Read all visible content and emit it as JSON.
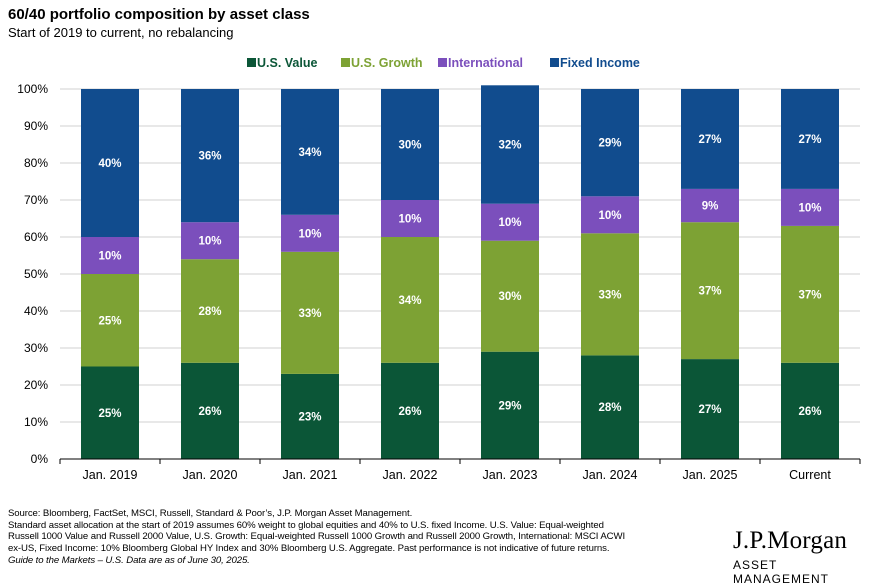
{
  "title": "60/40 portfolio composition by asset class",
  "subtitle": "Start of 2019 to current, no rebalancing",
  "footer": {
    "lines": [
      "Source: Bloomberg, FactSet, MSCI, Russell, Standard & Poor’s, J.P. Morgan Asset Management.",
      "Standard asset allocation at the start of 2019 assumes 60% weight to global equities and 40% to U.S. fixed Income. U.S. Value: Equal-weighted",
      "Russell 1000 Value and Russell 2000 Value, U.S. Growth: Equal-weighted Russell 1000 Growth and Russell 2000 Growth, International: MSCI ACWI",
      "ex-US, Fixed Income: 10% Bloomberg Global HY Index and 30% Bloomberg U.S. Aggregate. Past performance is not indicative of future returns."
    ],
    "guide": "Guide to the Markets – U.S. Data are as of June 30, 2025."
  },
  "logo": {
    "main": "J.P.Morgan",
    "sub": "ASSET MANAGEMENT"
  },
  "chart_data": {
    "type": "bar",
    "stacked": true,
    "categories": [
      "Jan. 2019",
      "Jan. 2020",
      "Jan. 2021",
      "Jan. 2022",
      "Jan. 2023",
      "Jan. 2024",
      "Jan. 2025",
      "Current"
    ],
    "series": [
      {
        "name": "U.S. Value",
        "color": "#0b5637",
        "values": [
          25,
          26,
          23,
          26,
          29,
          28,
          27,
          26
        ],
        "labels": [
          "25%",
          "26%",
          "23%",
          "26%",
          "29%",
          "28%",
          "27%",
          "26%"
        ]
      },
      {
        "name": "U.S. Growth",
        "color": "#7da234",
        "values": [
          25,
          28,
          33,
          34,
          30,
          33,
          37,
          37
        ],
        "labels": [
          "25%",
          "28%",
          "33%",
          "34%",
          "30%",
          "33%",
          "37%",
          "37%"
        ]
      },
      {
        "name": "International",
        "color": "#7b4fbc",
        "values": [
          10,
          10,
          10,
          10,
          10,
          10,
          9,
          10
        ],
        "labels": [
          "10%",
          "10%",
          "10%",
          "10%",
          "10%",
          "10%",
          "9%",
          "10%"
        ]
      },
      {
        "name": "Fixed Income",
        "color": "#114c8e",
        "values": [
          40,
          36,
          34,
          30,
          32,
          29,
          27,
          27
        ],
        "labels": [
          "40%",
          "36%",
          "34%",
          "30%",
          "32%",
          "29%",
          "27%",
          "27%"
        ]
      }
    ],
    "ylim": [
      0,
      100
    ],
    "yticks": [
      "0%",
      "10%",
      "20%",
      "30%",
      "40%",
      "50%",
      "60%",
      "70%",
      "80%",
      "90%",
      "100%"
    ],
    "grid": true,
    "legend": "top-center"
  }
}
